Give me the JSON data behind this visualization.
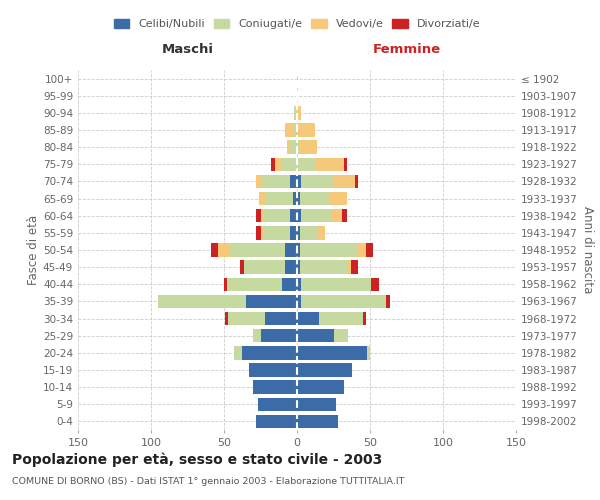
{
  "age_groups": [
    "0-4",
    "5-9",
    "10-14",
    "15-19",
    "20-24",
    "25-29",
    "30-34",
    "35-39",
    "40-44",
    "45-49",
    "50-54",
    "55-59",
    "60-64",
    "65-69",
    "70-74",
    "75-79",
    "80-84",
    "85-89",
    "90-94",
    "95-99",
    "100+"
  ],
  "birth_years": [
    "1998-2002",
    "1993-1997",
    "1988-1992",
    "1983-1987",
    "1978-1982",
    "1973-1977",
    "1968-1972",
    "1963-1967",
    "1958-1962",
    "1953-1957",
    "1948-1952",
    "1943-1947",
    "1938-1942",
    "1933-1937",
    "1928-1932",
    "1923-1927",
    "1918-1922",
    "1913-1917",
    "1908-1912",
    "1903-1907",
    "≤ 1902"
  ],
  "males": {
    "celibi": [
      28,
      27,
      30,
      33,
      38,
      25,
      22,
      35,
      10,
      8,
      8,
      5,
      5,
      3,
      5,
      0,
      0,
      0,
      0,
      0,
      0
    ],
    "coniugati": [
      0,
      0,
      0,
      0,
      5,
      5,
      25,
      60,
      38,
      28,
      38,
      18,
      18,
      18,
      20,
      10,
      5,
      3,
      2,
      0,
      0
    ],
    "vedovi": [
      0,
      0,
      0,
      0,
      0,
      0,
      0,
      0,
      0,
      0,
      8,
      2,
      2,
      5,
      3,
      5,
      2,
      5,
      0,
      0,
      0
    ],
    "divorziati": [
      0,
      0,
      0,
      0,
      0,
      0,
      2,
      0,
      2,
      3,
      5,
      3,
      3,
      0,
      0,
      3,
      0,
      0,
      0,
      0,
      0
    ]
  },
  "females": {
    "nubili": [
      28,
      27,
      32,
      38,
      48,
      25,
      15,
      3,
      3,
      2,
      2,
      2,
      3,
      2,
      3,
      0,
      0,
      0,
      0,
      0,
      0
    ],
    "coniugate": [
      0,
      0,
      0,
      0,
      2,
      10,
      30,
      58,
      48,
      32,
      40,
      12,
      20,
      20,
      22,
      12,
      2,
      0,
      0,
      0,
      0
    ],
    "vedove": [
      0,
      0,
      0,
      0,
      0,
      0,
      0,
      0,
      0,
      3,
      5,
      5,
      8,
      12,
      15,
      20,
      12,
      12,
      3,
      0,
      1
    ],
    "divorziate": [
      0,
      0,
      0,
      0,
      0,
      0,
      2,
      3,
      5,
      5,
      5,
      0,
      3,
      0,
      2,
      2,
      0,
      0,
      0,
      0,
      0
    ]
  },
  "colors": {
    "celibi": "#3c6ca8",
    "coniugati": "#c5d9a0",
    "vedovi": "#f5c87a",
    "divorziati": "#cc2222"
  },
  "title": "Popolazione per età, sesso e stato civile - 2003",
  "subtitle": "COMUNE DI BORNO (BS) - Dati ISTAT 1° gennaio 2003 - Elaborazione TUTTITALIA.IT",
  "xlabel_left": "Maschi",
  "xlabel_right": "Femmine",
  "ylabel_left": "Fasce di età",
  "ylabel_right": "Anni di nascita",
  "xlim": 150,
  "bg_color": "#ffffff",
  "grid_color": "#cccccc"
}
